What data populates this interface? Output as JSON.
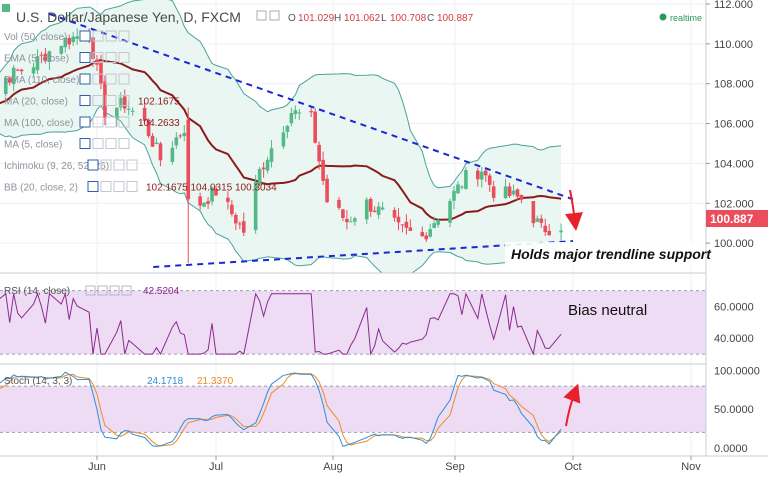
{
  "header": {
    "symbol_title": "U.S. Dollar/Japanese Yen, D, FXCM",
    "ohlc": [
      {
        "k": "O",
        "v": "101.029"
      },
      {
        "k": "H",
        "v": "101.062"
      },
      {
        "k": "L",
        "v": "100.708"
      },
      {
        "k": "C",
        "v": "100.887"
      }
    ],
    "realtime_label": "realtime"
  },
  "indicators": {
    "main": [
      {
        "label": "Vol (50, close)",
        "value": ""
      },
      {
        "label": "EMA (5, close)",
        "value": ""
      },
      {
        "label": "EMA (110, close)",
        "value": ""
      },
      {
        "label": "MA (20, close)",
        "value": "102.1675"
      },
      {
        "label": "MA (100, close)",
        "value": "104.2633"
      },
      {
        "label": "MA (5, close)",
        "value": ""
      },
      {
        "label": "Ichimoku (9, 26, 52, 26)",
        "value": ""
      },
      {
        "label": "BB (20, close, 2)",
        "value": "102.1675  104.0315  100.3034"
      }
    ],
    "rsi": {
      "label": "RSI (14, close)",
      "value": "42.5204"
    },
    "stoch": {
      "label": "Stoch (14, 3, 3)",
      "k": "24.1718",
      "d": "21.3370"
    }
  },
  "annotations": {
    "support_text": "Holds major trendline support",
    "bias_text": "Bias neutral"
  },
  "colors": {
    "up": "#53b987",
    "down": "#eb4d5c",
    "ma": "#8b1a1a",
    "bands": "#4aa39b",
    "band_fill": "#e9f6f2",
    "trendline": "#1a28d4",
    "arrow": "#e8202a",
    "rsi_line": "#8a2a8e",
    "osc_fill": "#eedcf5",
    "stoch_k": "#2e8fd6",
    "stoch_d": "#f08a24",
    "last_price_bg": "#eb4d5c"
  },
  "chart_data": [
    {
      "type": "candlestick",
      "price_axis": {
        "ticks": [
          "100.000",
          "102.000",
          "104.000",
          "106.000",
          "108.000",
          "110.000",
          "112.000"
        ],
        "range": [
          98.5,
          112.2
        ]
      },
      "time_axis": [
        "Jun",
        "Jul",
        "Aug",
        "Sep",
        "Oct",
        "Nov"
      ],
      "last_price": "100.887",
      "trendlines": {
        "upper": {
          "from": [
            "2016-05-20",
            111.5
          ],
          "to": [
            "2016-09-29",
            102.2
          ]
        },
        "lower": {
          "from": [
            "2016-06-24",
            98.8
          ],
          "to": [
            "2016-09-29",
            100.1
          ]
        }
      }
    },
    {
      "type": "line",
      "indicator": "RSI (14, close)",
      "axis_ticks": [
        "40.0000",
        "60.0000"
      ],
      "range": [
        25,
        78
      ],
      "band": [
        30,
        70
      ],
      "last_value": 42.5204
    },
    {
      "type": "line",
      "indicator": "Stoch (14, 3, 3)",
      "axis_ticks": [
        "0.0000",
        "50.0000",
        "100.0000"
      ],
      "range": [
        -8,
        106
      ],
      "band": [
        20,
        80
      ],
      "last_k": 24.1718,
      "last_d": 21.337
    }
  ]
}
